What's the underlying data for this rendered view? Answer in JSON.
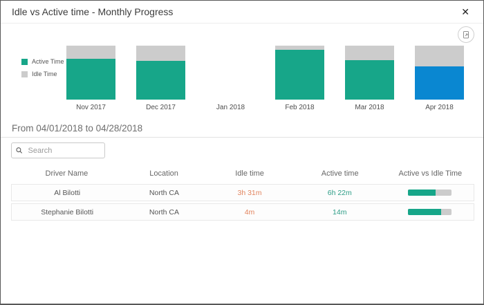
{
  "dialog": {
    "title": "Idle vs Active time - Monthly Progress"
  },
  "icons": {
    "close": "✕",
    "search": "search-icon",
    "export": "export-chart-icon"
  },
  "colors": {
    "active": "#17a689",
    "idle": "#cccccc",
    "highlight": "#0a87d1",
    "idle_text": "#e2855f",
    "active_text": "#2d9d87"
  },
  "chart_data": {
    "type": "bar",
    "stacked": true,
    "normalized": true,
    "categories": [
      "Nov 2017",
      "Dec 2017",
      "Jan 2018",
      "Feb 2018",
      "Mar 2018",
      "Apr 2018"
    ],
    "series": [
      {
        "name": "Active Time",
        "values": [
          76,
          72,
          null,
          92,
          73,
          62
        ]
      },
      {
        "name": "Idle Time",
        "values": [
          24,
          28,
          null,
          8,
          27,
          38
        ]
      }
    ],
    "unit": "percent",
    "highlight_index": 5,
    "legend_position": "left",
    "grid": false
  },
  "legend": {
    "items": [
      {
        "label": "Active Time",
        "color": "#17a689"
      },
      {
        "label": "Idle Time",
        "color": "#cccccc"
      }
    ]
  },
  "date_range": {
    "text": "From 04/01/2018 to 04/28/2018"
  },
  "search": {
    "placeholder": "Search"
  },
  "table": {
    "columns": [
      "Driver Name",
      "Location",
      "Idle time",
      "Active time",
      "Active vs Idle Time"
    ],
    "rows": [
      {
        "driver": "Al Bilotti",
        "location": "North CA",
        "idle": "3h 31m",
        "active": "6h 22m",
        "active_pct": 64
      },
      {
        "driver": "Stephanie Bilotti",
        "location": "North CA",
        "idle": "4m",
        "active": "14m",
        "active_pct": 76
      }
    ]
  }
}
